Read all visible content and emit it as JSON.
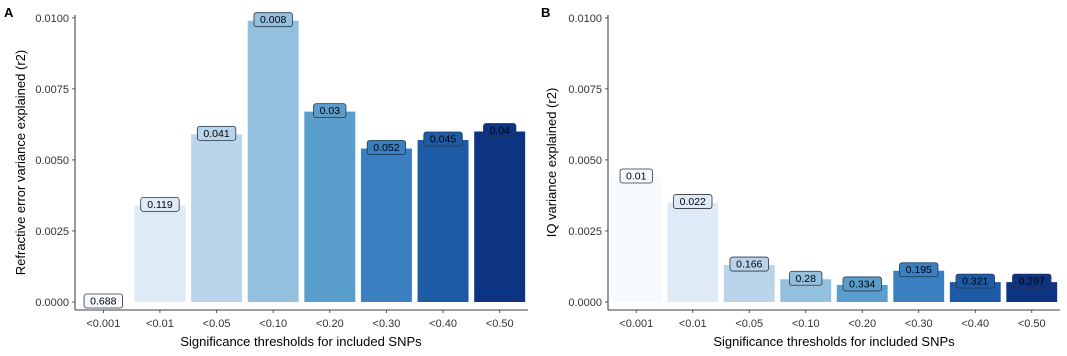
{
  "chart_data": [
    {
      "panel": "A",
      "type": "bar",
      "xlabel": "Significance thresholds for included SNPs",
      "ylabel": "Refractive error variance explained (r2)",
      "ylim": [
        0,
        0.0101
      ],
      "yticks": [
        "0.0000",
        "0.0025",
        "0.0050",
        "0.0075",
        "0.0100"
      ],
      "ytick_values": [
        0,
        0.0025,
        0.005,
        0.0075,
        0.01
      ],
      "categories": [
        "<0.001",
        "<0.01",
        "<0.05",
        "<0.10",
        "<0.20",
        "<0.30",
        "<0.40",
        "<0.50"
      ],
      "values": [
        0.0,
        0.0034,
        0.0059,
        0.0099,
        0.0067,
        0.0054,
        0.0057,
        0.006
      ],
      "labels": [
        "0.688",
        "0.119",
        "0.041",
        "0.008",
        "0.03",
        "0.052",
        "0.045",
        "0.04"
      ],
      "colors": [
        "#f7fbff",
        "#deebf7",
        "#bad4ec",
        "#94c0df",
        "#5a9ecd",
        "#3a7fbf",
        "#1d5ba6",
        "#0d3482"
      ],
      "grid": false,
      "legend": "none"
    },
    {
      "panel": "B",
      "type": "bar",
      "xlabel": "Significance thresholds for included SNPs",
      "ylabel": "IQ variance explained (r2)",
      "ylim": [
        0,
        0.0101
      ],
      "yticks": [
        "0.0000",
        "0.0025",
        "0.0050",
        "0.0075",
        "0.0100"
      ],
      "ytick_values": [
        0,
        0.0025,
        0.005,
        0.0075,
        0.01
      ],
      "categories": [
        "<0.001",
        "<0.01",
        "<0.05",
        "<0.10",
        "<0.20",
        "<0.30",
        "<0.40",
        "<0.50"
      ],
      "values": [
        0.0044,
        0.0035,
        0.0013,
        0.0008,
        0.0006,
        0.0011,
        0.0007,
        0.0007
      ],
      "labels": [
        "0.01",
        "0.022",
        "0.166",
        "0.28",
        "0.334",
        "0.195",
        "0.321",
        "0.297"
      ],
      "colors": [
        "#f7fbff",
        "#deebf7",
        "#bad4ec",
        "#94c0df",
        "#5a9ecd",
        "#3a7fbf",
        "#1d5ba6",
        "#0d3482"
      ],
      "grid": false,
      "legend": "none"
    }
  ]
}
